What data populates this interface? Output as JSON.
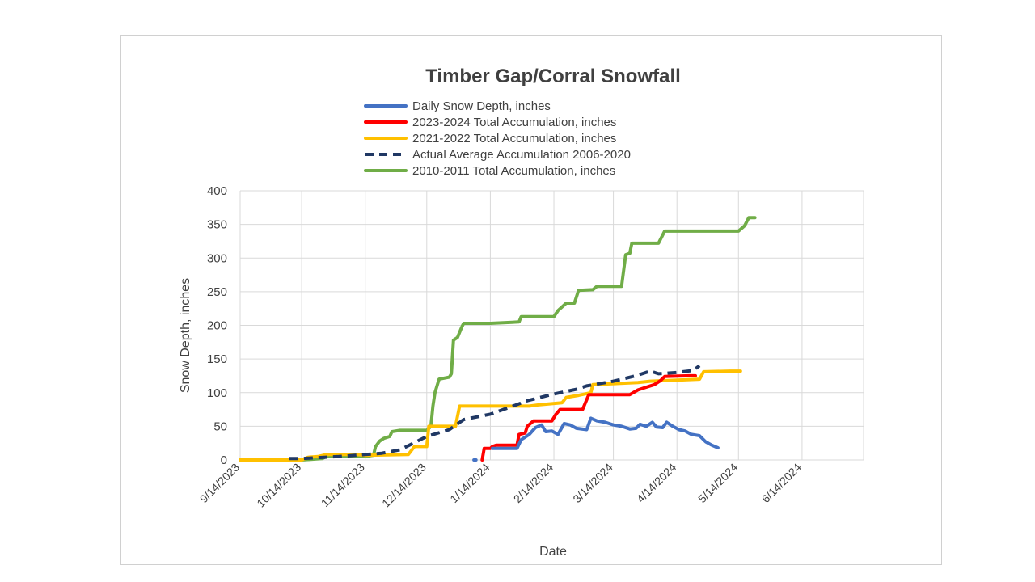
{
  "chart_data": {
    "type": "line",
    "title": "Timber Gap/Corral Snowfall",
    "xlabel": "Date",
    "ylabel": "Snow Depth, inches",
    "ylim": [
      0,
      400
    ],
    "xlim": [
      "9/14/2023",
      "7/14/2024"
    ],
    "grid": true,
    "legend_position": "top",
    "y_ticks": [
      "0",
      "50",
      "100",
      "150",
      "200",
      "250",
      "300",
      "350",
      "400"
    ],
    "x_ticks": [
      "9/14/2023",
      "10/14/2023",
      "11/14/2023",
      "12/14/2023",
      "1/14/2024",
      "2/14/2024",
      "3/14/2024",
      "4/14/2024",
      "5/14/2024",
      "6/14/2024"
    ],
    "series": [
      {
        "name": "Daily Snow Depth, inches",
        "color": "#4472c4",
        "style": "solid",
        "points": [
          [
            "1/6/2024",
            0
          ],
          [
            "1/7/2024",
            0
          ],
          [
            "1/13/2024",
            null
          ],
          [
            "1/15/2024",
            17
          ],
          [
            "1/27/2024",
            17
          ],
          [
            "1/29/2024",
            30
          ],
          [
            "2/2/2024",
            38
          ],
          [
            "2/5/2024",
            48
          ],
          [
            "2/8/2024",
            52
          ],
          [
            "2/10/2024",
            42
          ],
          [
            "2/13/2024",
            43
          ],
          [
            "2/16/2024",
            38
          ],
          [
            "2/19/2024",
            54
          ],
          [
            "2/22/2024",
            52
          ],
          [
            "2/25/2024",
            47
          ],
          [
            "3/1/2024",
            45
          ],
          [
            "3/3/2024",
            62
          ],
          [
            "3/6/2024",
            58
          ],
          [
            "3/10/2024",
            56
          ],
          [
            "3/14/2024",
            52
          ],
          [
            "3/18/2024",
            50
          ],
          [
            "3/22/2024",
            46
          ],
          [
            "3/25/2024",
            47
          ],
          [
            "3/27/2024",
            53
          ],
          [
            "3/30/2024",
            50
          ],
          [
            "4/2/2024",
            56
          ],
          [
            "4/4/2024",
            49
          ],
          [
            "4/7/2024",
            48
          ],
          [
            "4/9/2024",
            56
          ],
          [
            "4/12/2024",
            50
          ],
          [
            "4/15/2024",
            45
          ],
          [
            "4/18/2024",
            43
          ],
          [
            "4/21/2024",
            38
          ],
          [
            "4/25/2024",
            36
          ],
          [
            "4/28/2024",
            27
          ],
          [
            "5/1/2024",
            22
          ],
          [
            "5/4/2024",
            18
          ]
        ]
      },
      {
        "name": "2023-2024  Total  Accumulation, inches",
        "color": "#ff0000",
        "style": "solid",
        "points": [
          [
            "1/10/2024",
            0
          ],
          [
            "1/11/2024",
            17
          ],
          [
            "1/14/2024",
            17
          ],
          [
            "1/15/2024",
            20
          ],
          [
            "1/17/2024",
            22
          ],
          [
            "1/27/2024",
            22
          ],
          [
            "1/28/2024",
            38
          ],
          [
            "1/31/2024",
            40
          ],
          [
            "2/1/2024",
            50
          ],
          [
            "2/4/2024",
            58
          ],
          [
            "2/13/2024",
            58
          ],
          [
            "2/15/2024",
            68
          ],
          [
            "2/17/2024",
            75
          ],
          [
            "2/28/2024",
            75
          ],
          [
            "3/2/2024",
            97
          ],
          [
            "3/22/2024",
            97
          ],
          [
            "3/26/2024",
            104
          ],
          [
            "3/29/2024",
            107
          ],
          [
            "4/3/2024",
            112
          ],
          [
            "4/6/2024",
            118
          ],
          [
            "4/8/2024",
            124
          ],
          [
            "4/20/2024",
            125
          ],
          [
            "4/23/2024",
            125
          ]
        ]
      },
      {
        "name": "2021-2022  Total  Accumulation, inches",
        "color": "#ffc000",
        "style": "solid",
        "points": [
          [
            "9/14/2023",
            0
          ],
          [
            "10/14/2023",
            0
          ],
          [
            "10/17/2023",
            4
          ],
          [
            "10/22/2023",
            5
          ],
          [
            "10/26/2023",
            8
          ],
          [
            "11/10/2023",
            8
          ],
          [
            "11/14/2023",
            7
          ],
          [
            "12/5/2023",
            8
          ],
          [
            "12/8/2023",
            20
          ],
          [
            "12/14/2023",
            20
          ],
          [
            "12/15/2023",
            50
          ],
          [
            "12/28/2023",
            50
          ],
          [
            "12/30/2023",
            80
          ],
          [
            "2/2/2024",
            80
          ],
          [
            "2/7/2024",
            82
          ],
          [
            "2/18/2024",
            85
          ],
          [
            "2/20/2024",
            93
          ],
          [
            "2/26/2024",
            96
          ],
          [
            "3/3/2024",
            100
          ],
          [
            "3/4/2024",
            112
          ],
          [
            "3/26/2024",
            115
          ],
          [
            "4/1/2024",
            117
          ],
          [
            "4/25/2024",
            120
          ],
          [
            "4/27/2024",
            131
          ],
          [
            "5/10/2024",
            132
          ],
          [
            "5/15/2024",
            132
          ]
        ]
      },
      {
        "name": "Actual Average Accumulation 2006-2020",
        "color": "#203864",
        "style": "dashed",
        "points": [
          [
            "10/8/2023",
            2
          ],
          [
            "10/14/2023",
            2
          ],
          [
            "10/25/2023",
            4
          ],
          [
            "11/1/2023",
            5
          ],
          [
            "11/14/2023",
            8
          ],
          [
            "11/22/2023",
            10
          ],
          [
            "12/1/2023",
            15
          ],
          [
            "12/14/2023",
            35
          ],
          [
            "12/25/2023",
            45
          ],
          [
            "1/1/2024",
            60
          ],
          [
            "1/14/2024",
            68
          ],
          [
            "1/25/2024",
            80
          ],
          [
            "2/1/2024",
            88
          ],
          [
            "2/14/2024",
            98
          ],
          [
            "2/25/2024",
            105
          ],
          [
            "3/1/2024",
            110
          ],
          [
            "3/14/2024",
            117
          ],
          [
            "3/25/2024",
            125
          ],
          [
            "4/1/2024",
            132
          ],
          [
            "4/5/2024",
            128
          ],
          [
            "4/14/2024",
            130
          ],
          [
            "4/22/2024",
            133
          ],
          [
            "4/25/2024",
            140
          ]
        ]
      },
      {
        "name": "2010-2011 Total Accumulation, inches",
        "color": "#70ad47",
        "style": "solid",
        "points": [
          [
            "9/14/2023",
            0
          ],
          [
            "10/14/2023",
            0
          ],
          [
            "10/24/2023",
            2
          ],
          [
            "10/26/2023",
            5
          ],
          [
            "11/5/2023",
            5
          ],
          [
            "11/14/2023",
            5
          ],
          [
            "11/18/2023",
            7
          ],
          [
            "11/19/2023",
            20
          ],
          [
            "11/21/2023",
            28
          ],
          [
            "11/23/2023",
            32
          ],
          [
            "11/26/2023",
            35
          ],
          [
            "11/27/2023",
            42
          ],
          [
            "12/1/2023",
            44
          ],
          [
            "12/14/2023",
            44
          ],
          [
            "12/16/2023",
            50
          ],
          [
            "12/17/2023",
            80
          ],
          [
            "12/18/2023",
            100
          ],
          [
            "12/20/2023",
            120
          ],
          [
            "12/25/2023",
            123
          ],
          [
            "12/26/2023",
            128
          ],
          [
            "12/27/2023",
            178
          ],
          [
            "12/29/2023",
            182
          ],
          [
            "12/31/2023",
            197
          ],
          [
            "1/1/2024",
            203
          ],
          [
            "1/14/2024",
            203
          ],
          [
            "1/28/2024",
            205
          ],
          [
            "1/29/2024",
            213
          ],
          [
            "2/14/2024",
            213
          ],
          [
            "2/16/2024",
            222
          ],
          [
            "2/20/2024",
            233
          ],
          [
            "2/24/2024",
            233
          ],
          [
            "2/26/2024",
            252
          ],
          [
            "3/4/2024",
            253
          ],
          [
            "3/6/2024",
            258
          ],
          [
            "3/18/2024",
            258
          ],
          [
            "3/20/2024",
            305
          ],
          [
            "3/22/2024",
            307
          ],
          [
            "3/23/2024",
            322
          ],
          [
            "4/5/2024",
            322
          ],
          [
            "4/8/2024",
            340
          ],
          [
            "5/14/2024",
            340
          ],
          [
            "5/17/2024",
            348
          ],
          [
            "5/19/2024",
            360
          ],
          [
            "5/22/2024",
            360
          ]
        ]
      }
    ]
  }
}
